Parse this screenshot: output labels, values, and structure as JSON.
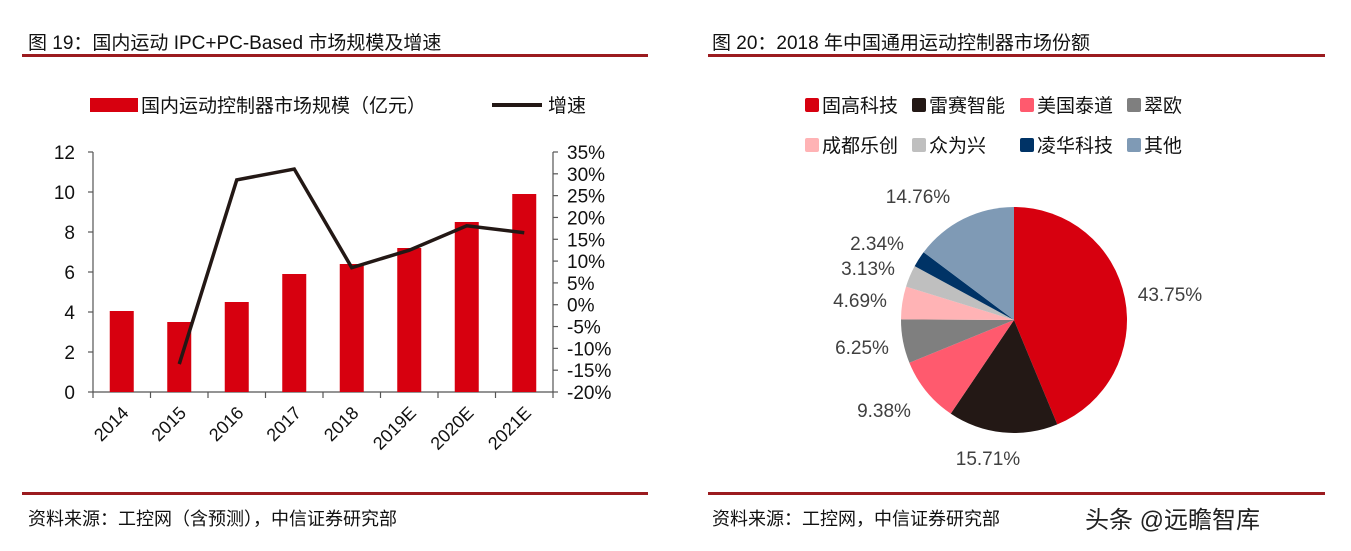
{
  "left": {
    "title": "图 19：国内运动 IPC+PC-Based 市场规模及增速",
    "source": "资料来源：工控网（含预测），中信证券研究部"
  },
  "right": {
    "title": "图 20：2018 年中国通用运动控制器市场份额",
    "source": "资料来源：工控网，中信证券研究部"
  },
  "watermark": "头条 @远瞻智库",
  "chart_data": [
    {
      "type": "bar+line",
      "categories": [
        "2014",
        "2015",
        "2016",
        "2017",
        "2018",
        "2019E",
        "2020E",
        "2021E"
      ],
      "series": [
        {
          "name": "国内运动控制器市场规模（亿元）",
          "type": "bar",
          "axis": "left",
          "color": "#d7000f",
          "values": [
            4.05,
            3.5,
            4.5,
            5.9,
            6.4,
            7.2,
            8.5,
            9.9
          ]
        },
        {
          "name": "增速",
          "type": "line",
          "axis": "right",
          "color": "#231815",
          "values": [
            null,
            -13.6,
            28.6,
            31.1,
            8.5,
            12.5,
            18.1,
            16.5
          ]
        }
      ],
      "y_left": {
        "lim": [
          0,
          12
        ],
        "ticks": [
          "0",
          "2",
          "4",
          "6",
          "8",
          "10",
          "12"
        ]
      },
      "y_right": {
        "lim": [
          -20,
          35
        ],
        "ticks": [
          "-20%",
          "-15%",
          "-10%",
          "-5%",
          "0%",
          "5%",
          "10%",
          "15%",
          "20%",
          "25%",
          "30%",
          "35%"
        ]
      },
      "legend_placement": "top",
      "grid": false
    },
    {
      "type": "pie",
      "slices": [
        {
          "label": "固高科技",
          "value": 43.75,
          "text": "43.75%",
          "color": "#d7000f"
        },
        {
          "label": "雷赛智能",
          "value": 15.71,
          "text": "15.71%",
          "color": "#231815"
        },
        {
          "label": "美国泰道",
          "value": 9.38,
          "text": "9.38%",
          "color": "#ff5a6e"
        },
        {
          "label": "翠欧",
          "value": 6.25,
          "text": "6.25%",
          "color": "#7f7f7f"
        },
        {
          "label": "成都乐创",
          "value": 4.69,
          "text": "4.69%",
          "color": "#ffb3b5"
        },
        {
          "label": "众为兴",
          "value": 3.13,
          "text": "3.13%",
          "color": "#bfbfbf"
        },
        {
          "label": "凌华科技",
          "value": 2.34,
          "text": "2.34%",
          "color": "#003366"
        },
        {
          "label": "其他",
          "value": 14.76,
          "text": "14.76%",
          "color": "#7f9ab5"
        }
      ],
      "legend_placement": "top",
      "start": "12 o'clock clockwise"
    }
  ]
}
